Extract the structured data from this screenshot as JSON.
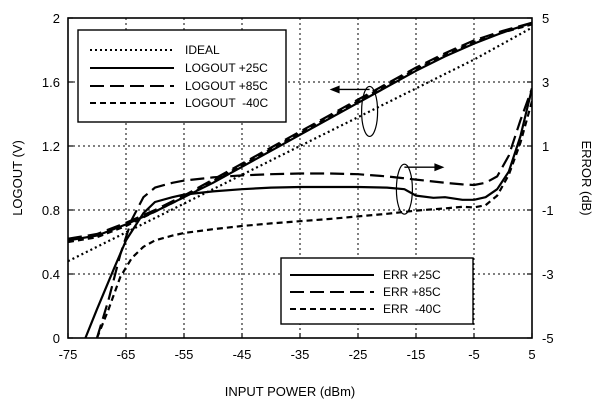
{
  "chart_data": {
    "type": "line",
    "title": "",
    "xlabel": "INPUT POWER (dBm)",
    "ylabel_left": "LOGOUT (V)",
    "ylabel_right": "ERROR  (dB)",
    "xlim": [
      -75,
      5
    ],
    "ylim_left": [
      0,
      2
    ],
    "ylim_right": [
      -5,
      5
    ],
    "grid": true,
    "x_ticks": [
      "-75",
      "-65",
      "-55",
      "-45",
      "-35",
      "-25",
      "-15",
      "-5",
      "5"
    ],
    "y_left_ticks": [
      "0",
      "0.4",
      "0.8",
      "1.2",
      "1.6",
      "2"
    ],
    "y_right_ticks": [
      "-5",
      "-3",
      "-1",
      "1",
      "3",
      "5"
    ],
    "legends": [
      {
        "position": "top-left",
        "entries": [
          "IDEAL",
          "LOGOUT +25C",
          "LOGOUT +85C",
          "LOGOUT  -40C"
        ]
      },
      {
        "position": "bottom-right",
        "entries": [
          "ERR +25C",
          "ERR +85C",
          "ERR  -40C"
        ]
      }
    ],
    "series": [
      {
        "name": "IDEAL",
        "axis": "left",
        "style": "dotted",
        "x": [
          -75,
          -65,
          -55,
          -45,
          -35,
          -25,
          -15,
          -5,
          5
        ],
        "y": [
          0.48,
          0.66,
          0.84,
          1.02,
          1.2,
          1.38,
          1.56,
          1.74,
          1.94
        ]
      },
      {
        "name": "LOGOUT +25C",
        "axis": "left",
        "style": "solid",
        "x": [
          -75,
          -70,
          -65,
          -60,
          -55,
          -50,
          -45,
          -40,
          -35,
          -30,
          -25,
          -20,
          -15,
          -10,
          -5,
          0,
          5
        ],
        "y": [
          0.61,
          0.64,
          0.71,
          0.79,
          0.88,
          0.97,
          1.07,
          1.17,
          1.27,
          1.37,
          1.47,
          1.57,
          1.67,
          1.76,
          1.84,
          1.91,
          1.97
        ]
      },
      {
        "name": "LOGOUT +85C",
        "axis": "left",
        "style": "long-dash",
        "x": [
          -75,
          -70,
          -65,
          -60,
          -55,
          -50,
          -45,
          -40,
          -35,
          -30,
          -25,
          -20,
          -15,
          -10,
          -5,
          0,
          5
        ],
        "y": [
          0.62,
          0.65,
          0.72,
          0.8,
          0.89,
          0.99,
          1.09,
          1.19,
          1.29,
          1.39,
          1.49,
          1.59,
          1.69,
          1.78,
          1.86,
          1.92,
          1.97
        ]
      },
      {
        "name": "LOGOUT  -40C",
        "axis": "left",
        "style": "short-dash",
        "x": [
          -75,
          -70,
          -65,
          -60,
          -55,
          -50,
          -45,
          -40,
          -35,
          -30,
          -25,
          -20,
          -15,
          -10,
          -5,
          0,
          5
        ],
        "y": [
          0.6,
          0.63,
          0.7,
          0.79,
          0.88,
          0.98,
          1.08,
          1.18,
          1.28,
          1.38,
          1.48,
          1.58,
          1.68,
          1.77,
          1.85,
          1.91,
          1.96
        ]
      },
      {
        "name": "ERR +25C",
        "axis": "right",
        "style": "solid",
        "x": [
          -72,
          -70,
          -67,
          -65,
          -62,
          -60,
          -57,
          -55,
          -50,
          -45,
          -40,
          -35,
          -30,
          -25,
          -20,
          -17,
          -15,
          -12,
          -10,
          -7,
          -5,
          -3,
          -1,
          1,
          3,
          5
        ],
        "y": [
          -5,
          -4.1,
          -2.8,
          -1.95,
          -1.1,
          -0.75,
          -0.6,
          -0.52,
          -0.42,
          -0.35,
          -0.3,
          -0.28,
          -0.28,
          -0.28,
          -0.3,
          -0.35,
          -0.55,
          -0.62,
          -0.6,
          -0.68,
          -0.68,
          -0.6,
          -0.35,
          0.2,
          1.3,
          2.8
        ]
      },
      {
        "name": "ERR +85C",
        "axis": "right",
        "style": "long-dash",
        "x": [
          -70,
          -68,
          -66,
          -64,
          -62,
          -60,
          -57,
          -55,
          -50,
          -45,
          -40,
          -35,
          -30,
          -25,
          -20,
          -15,
          -10,
          -7,
          -5,
          -3,
          -1,
          1,
          3,
          5
        ],
        "y": [
          -5,
          -3.8,
          -2.4,
          -1.3,
          -0.6,
          -0.3,
          -0.15,
          -0.08,
          0.02,
          0.08,
          0.12,
          0.14,
          0.14,
          0.12,
          0.05,
          -0.05,
          -0.15,
          -0.2,
          -0.22,
          -0.15,
          0.05,
          0.7,
          1.8,
          2.8
        ]
      },
      {
        "name": "ERR  -40C",
        "axis": "right",
        "style": "short-dash",
        "x": [
          -70,
          -68,
          -66,
          -64,
          -62,
          -60,
          -57,
          -55,
          -50,
          -45,
          -40,
          -35,
          -30,
          -25,
          -20,
          -15,
          -10,
          -7,
          -5,
          -3,
          -1,
          1,
          3,
          5
        ],
        "y": [
          -5,
          -4.1,
          -3.1,
          -2.5,
          -2.15,
          -1.95,
          -1.8,
          -1.72,
          -1.6,
          -1.5,
          -1.42,
          -1.35,
          -1.28,
          -1.2,
          -1.12,
          -1.02,
          -0.95,
          -0.9,
          -0.92,
          -0.85,
          -0.55,
          0.1,
          1.1,
          2.4
        ]
      }
    ],
    "annotations": [
      {
        "type": "ellipse-arrow",
        "target_axis": "left",
        "near_x": -23,
        "arrow": "left"
      },
      {
        "type": "ellipse-arrow",
        "target_axis": "right",
        "near_x": -17,
        "arrow": "right"
      }
    ]
  }
}
